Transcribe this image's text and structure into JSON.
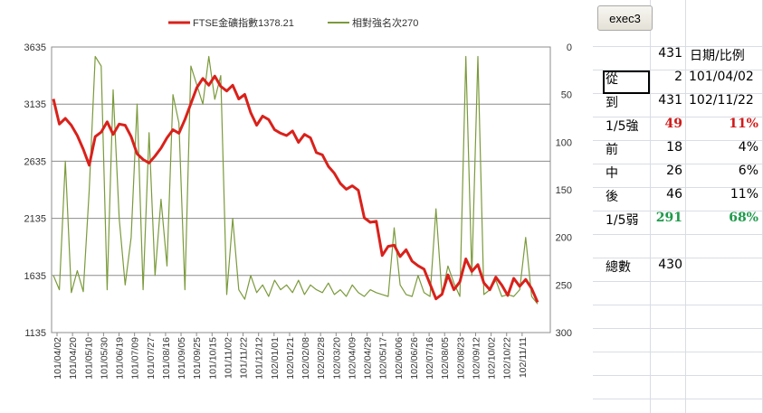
{
  "chart_data": {
    "type": "line",
    "legend_position": "top",
    "grid": true,
    "x_tick_labels": [
      "101/04/02",
      "101/04/20",
      "101/05/10",
      "101/05/30",
      "101/06/19",
      "101/07/09",
      "101/07/27",
      "101/08/16",
      "101/09/05",
      "101/09/25",
      "101/10/15",
      "101/11/02",
      "101/11/22",
      "101/12/12",
      "102/01/01",
      "102/01/21",
      "102/02/08",
      "102/02/28",
      "102/03/20",
      "102/04/09",
      "102/04/29",
      "102/05/17",
      "102/06/06",
      "102/06/26",
      "102/07/16",
      "102/08/05",
      "102/08/23",
      "102/09/12",
      "102/10/02",
      "102/10/22",
      "102/11/11"
    ],
    "y_left": {
      "min": 1135,
      "max": 3635,
      "ticks": [
        3635,
        3135,
        2635,
        2135,
        1635,
        1135
      ]
    },
    "y_right": {
      "min": 0,
      "max": 300,
      "ticks": [
        0,
        50,
        100,
        150,
        200,
        250,
        300
      ],
      "inverted": true
    },
    "series": [
      {
        "name": "FTSE金礦指數1378.21",
        "axis": "left",
        "color": "#d9211b",
        "values": [
          3180,
          2960,
          3010,
          2950,
          2860,
          2740,
          2600,
          2850,
          2890,
          2980,
          2870,
          2960,
          2950,
          2850,
          2700,
          2650,
          2620,
          2680,
          2750,
          2840,
          2910,
          2880,
          3000,
          3140,
          3280,
          3360,
          3300,
          3380,
          3290,
          3250,
          3300,
          3180,
          3220,
          3060,
          2950,
          3030,
          3000,
          2910,
          2880,
          2860,
          2900,
          2800,
          2870,
          2840,
          2710,
          2690,
          2590,
          2530,
          2440,
          2390,
          2420,
          2380,
          2140,
          2100,
          2110,
          1810,
          1890,
          1900,
          1800,
          1860,
          1760,
          1720,
          1690,
          1560,
          1430,
          1470,
          1640,
          1510,
          1580,
          1780,
          1670,
          1730,
          1570,
          1510,
          1620,
          1550,
          1460,
          1610,
          1540,
          1600,
          1520,
          1400
        ]
      },
      {
        "name": "相對強名次270",
        "axis": "right",
        "color": "#7b9a3c",
        "values": [
          240,
          255,
          120,
          258,
          235,
          257,
          150,
          10,
          20,
          255,
          45,
          180,
          250,
          200,
          60,
          255,
          90,
          240,
          160,
          230,
          50,
          80,
          255,
          20,
          40,
          60,
          10,
          55,
          30,
          260,
          180,
          255,
          265,
          240,
          258,
          250,
          262,
          245,
          255,
          250,
          258,
          245,
          260,
          250,
          255,
          258,
          248,
          260,
          255,
          262,
          250,
          258,
          262,
          255,
          258,
          260,
          262,
          190,
          250,
          260,
          262,
          240,
          258,
          262,
          170,
          260,
          230,
          248,
          262,
          10,
          240,
          10,
          260,
          255,
          245,
          262,
          260,
          262,
          255,
          200,
          262,
          270
        ]
      }
    ]
  },
  "toolbar": {
    "exec_label": "exec3"
  },
  "sheet": {
    "header": {
      "count": "431",
      "label": "日期/比例"
    },
    "rows": [
      {
        "label": "從",
        "value": "2",
        "extra": "101/04/02"
      },
      {
        "label": "到",
        "value": "431",
        "extra": "102/11/22"
      },
      {
        "label": "1/5強",
        "value": "49",
        "extra": "11%"
      },
      {
        "label": "前",
        "value": "18",
        "extra": "4%"
      },
      {
        "label": "中",
        "value": "26",
        "extra": "6%"
      },
      {
        "label": "後",
        "value": "46",
        "extra": "11%"
      },
      {
        "label": "1/5弱",
        "value": "291",
        "extra": "68%"
      },
      {
        "label": "總數",
        "value": "430",
        "extra": ""
      }
    ]
  }
}
